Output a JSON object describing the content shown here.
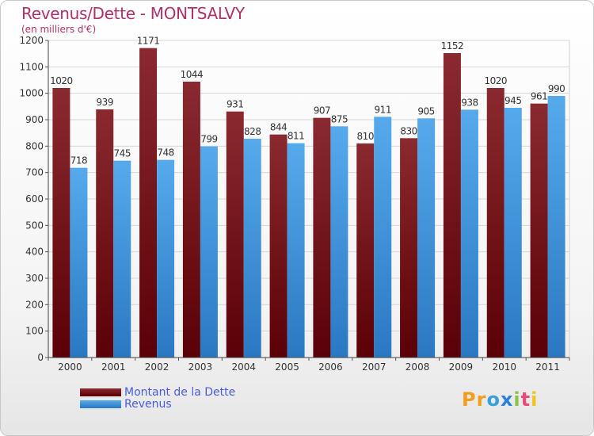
{
  "chart_data": {
    "type": "bar",
    "title": "Revenus/Dette - MONTSALVY",
    "subtitle": "(en milliers d'€)",
    "categories": [
      "2000",
      "2001",
      "2002",
      "2003",
      "2004",
      "2005",
      "2006",
      "2007",
      "2008",
      "2009",
      "2010",
      "2011"
    ],
    "series": [
      {
        "name": "Montant de la Dette",
        "color": "#8b1a1e",
        "values": [
          1020,
          939,
          1171,
          1044,
          931,
          844,
          907,
          810,
          830,
          1152,
          1020,
          961
        ]
      },
      {
        "name": "Revenus",
        "color": "#4ea3e6",
        "values": [
          718,
          745,
          748,
          799,
          828,
          811,
          875,
          911,
          905,
          938,
          945,
          990
        ]
      }
    ],
    "ylim": [
      0,
      1200
    ],
    "yticks": [
      "0",
      "100",
      "200",
      "300",
      "400",
      "500",
      "600",
      "700",
      "800",
      "900",
      "1000",
      "1100",
      "1200"
    ],
    "grid": true,
    "legend_position": "bottom-left"
  },
  "brand": {
    "letters": [
      "P",
      "r",
      "o",
      "x",
      "i",
      "t",
      "i"
    ],
    "colors": [
      "#f39c1e",
      "#f39c1e",
      "#3aa0d8",
      "#2b7fd6",
      "#8bc34a",
      "#e84a7a",
      "#f0c419"
    ]
  }
}
